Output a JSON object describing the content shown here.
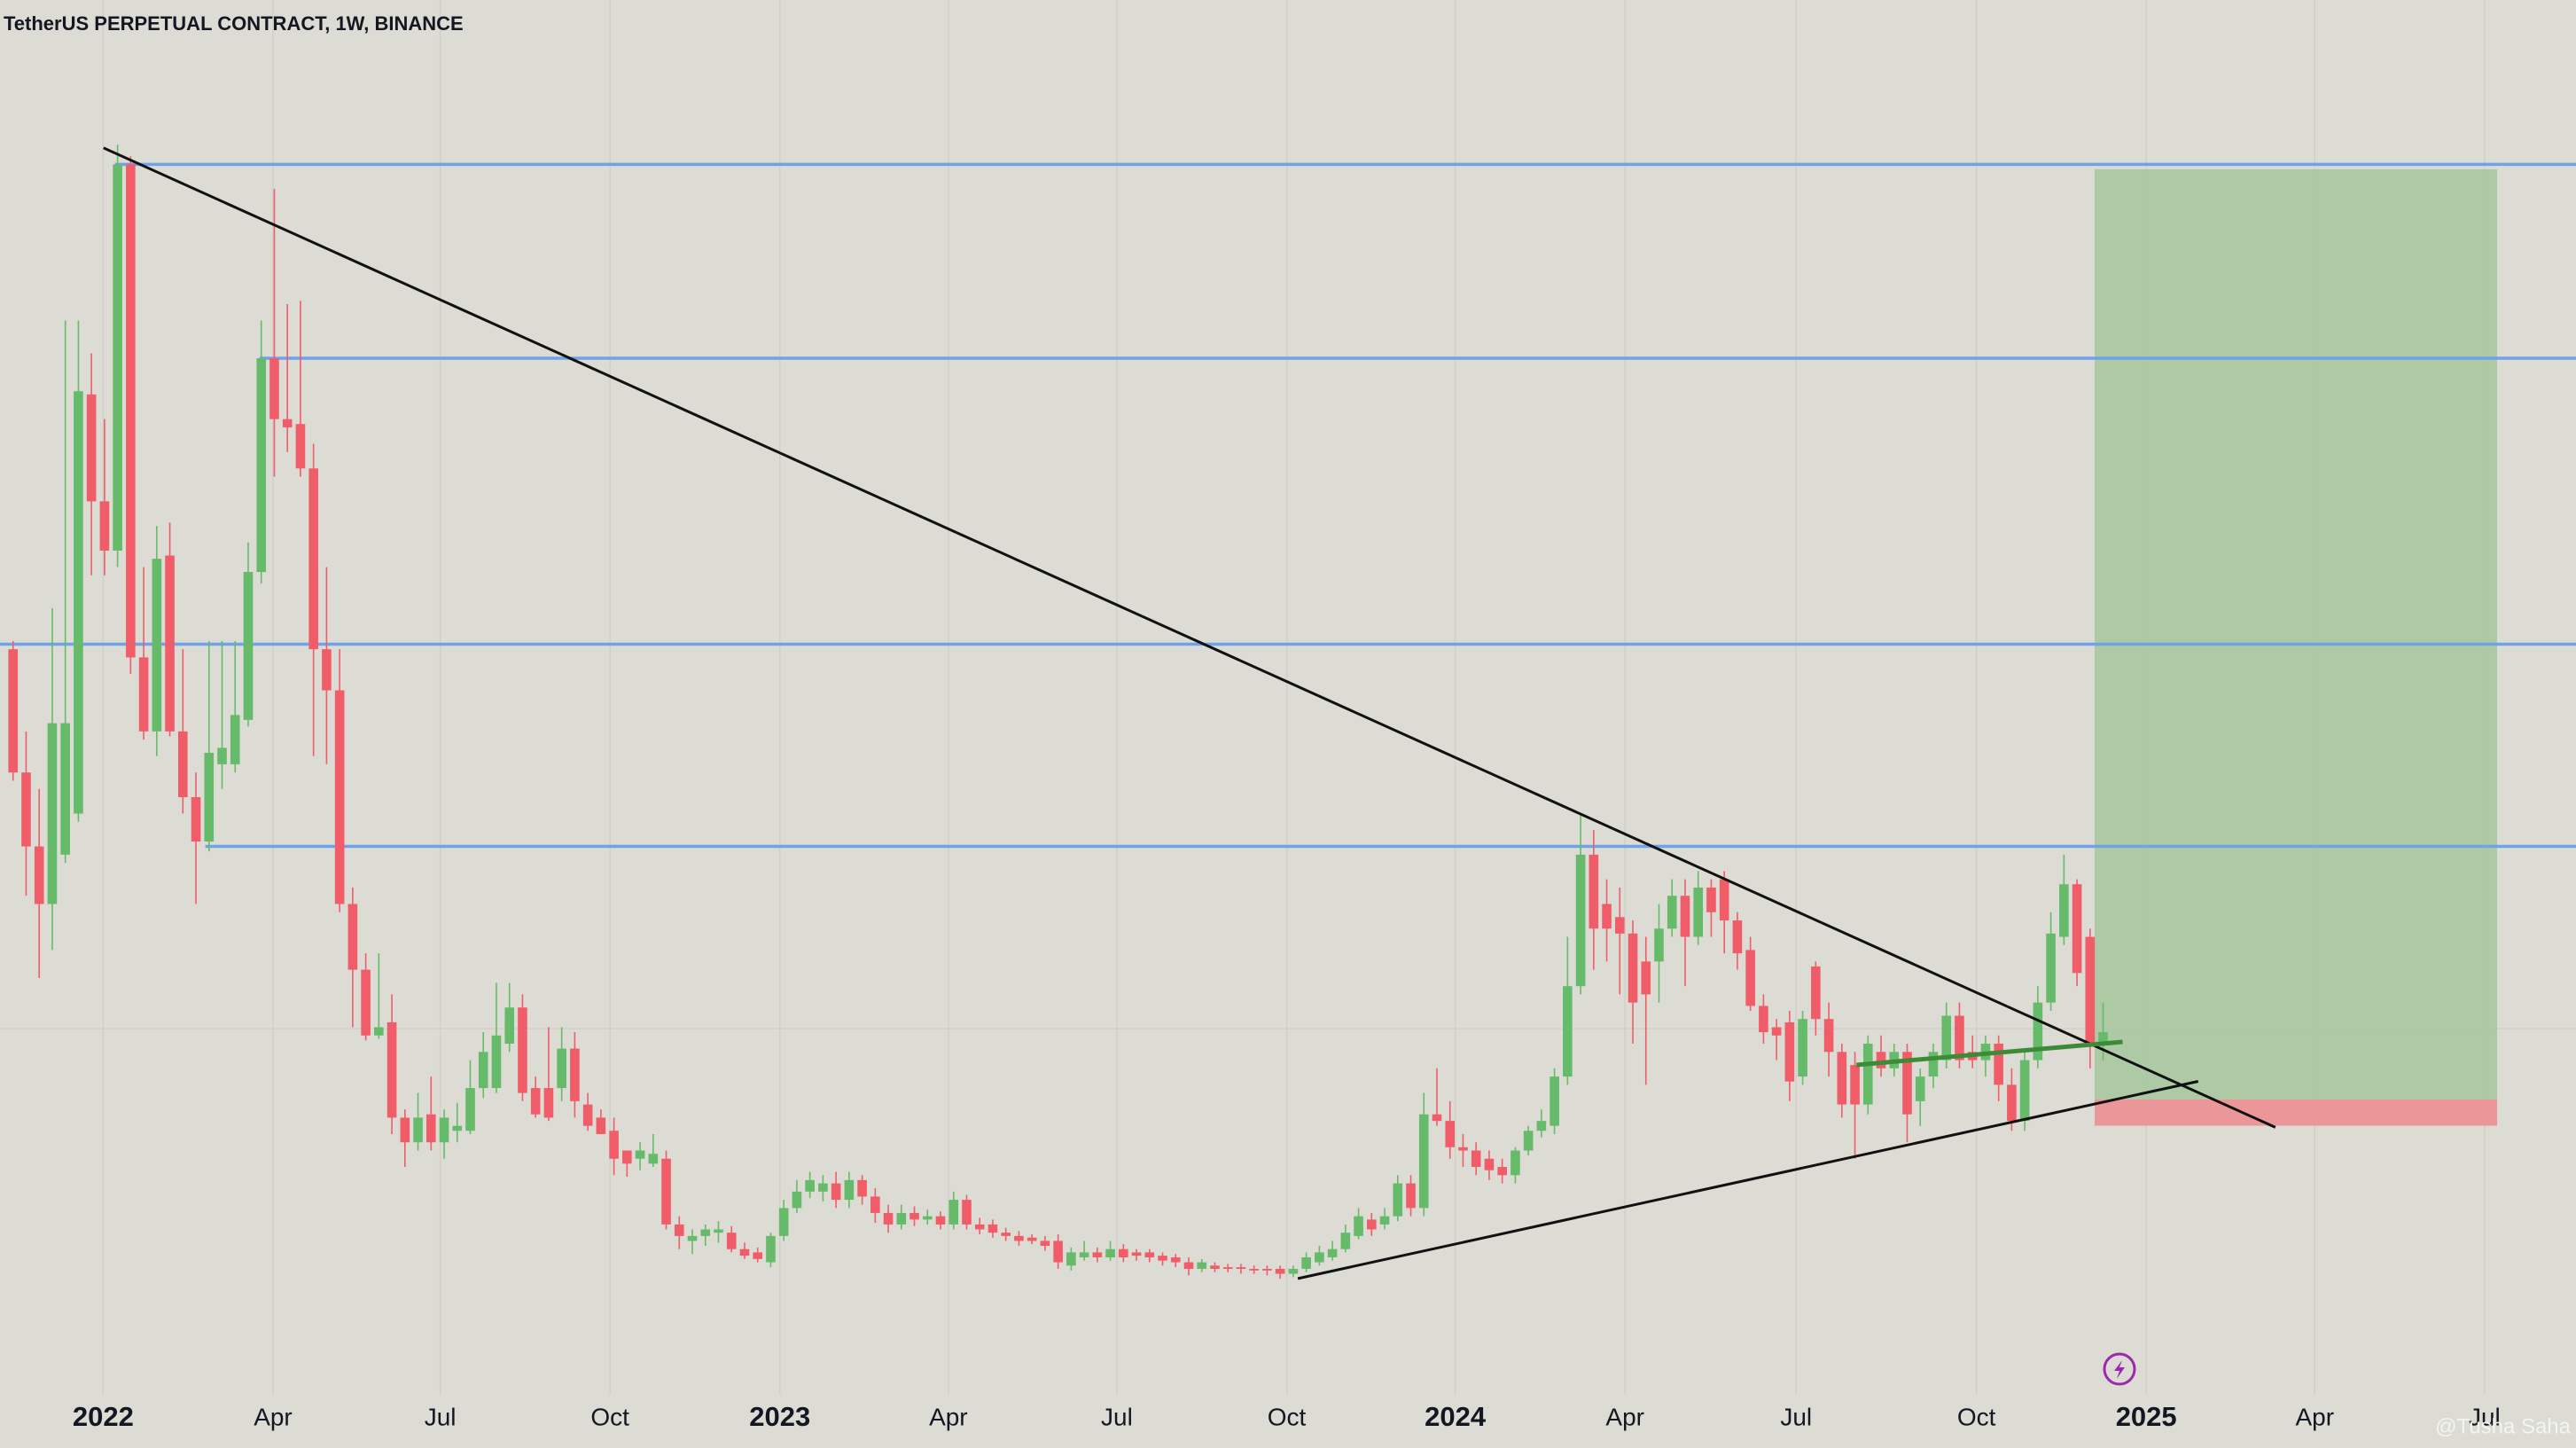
{
  "chart_data": {
    "type": "candlestick",
    "title": "TetherUS PERPETUAL CONTRACT, 1W, BINANCE",
    "watermark": "@Tusha Saha",
    "up_color": "#66bb6a",
    "down_color": "#f05d69",
    "xlim": [
      -1.0,
      196.2
    ],
    "ylim": [
      0,
      881
    ],
    "grid": true,
    "xticks": [
      {
        "value": 6.9,
        "label": "2022"
      },
      {
        "value": 19.9,
        "label": "Apr"
      },
      {
        "value": 32.7,
        "label": "Jul"
      },
      {
        "value": 45.7,
        "label": "Oct"
      },
      {
        "value": 58.7,
        "label": "2023"
      },
      {
        "value": 71.6,
        "label": "Apr"
      },
      {
        "value": 84.5,
        "label": "Jul"
      },
      {
        "value": 97.5,
        "label": "Oct"
      },
      {
        "value": 110.4,
        "label": "2024"
      },
      {
        "value": 123.4,
        "label": "Apr"
      },
      {
        "value": 136.5,
        "label": "Jul"
      },
      {
        "value": 150.3,
        "label": "Oct"
      },
      {
        "value": 163.3,
        "label": "2025"
      },
      {
        "value": 176.2,
        "label": "Apr"
      },
      {
        "value": 189.2,
        "label": "Jul"
      }
    ],
    "open": [
      486,
      411,
      366,
      331,
      361,
      386,
      641,
      576,
      546,
      781,
      481,
      436,
      543,
      436,
      396,
      369,
      416,
      416,
      443,
      533,
      663,
      626,
      623,
      596,
      486,
      461,
      331,
      291,
      251,
      259,
      201,
      186,
      203,
      186,
      193,
      193,
      219,
      219,
      246,
      268,
      219,
      219,
      219,
      243,
      209,
      201,
      193,
      181,
      176,
      173,
      176,
      136,
      126,
      129,
      131,
      131,
      121,
      119,
      113,
      129,
      146,
      156,
      156,
      161,
      151,
      163,
      153,
      143,
      136,
      143,
      139,
      141,
      136,
      151,
      136,
      136,
      131,
      129,
      128,
      126,
      126,
      111,
      116,
      119,
      116,
      121,
      119,
      119,
      117,
      116,
      113,
      109,
      111,
      110,
      110,
      109,
      109,
      109,
      106,
      109,
      113,
      116,
      121,
      129,
      139,
      136,
      141,
      161,
      146,
      203,
      199,
      183,
      181,
      176,
      171,
      166,
      181,
      193,
      196,
      226,
      281,
      361,
      331,
      323,
      313,
      296,
      296,
      316,
      336,
      311,
      341,
      346,
      321,
      303,
      269,
      256,
      259,
      226,
      293,
      261,
      241,
      233,
      209,
      241,
      231,
      241,
      211,
      226,
      236,
      263,
      241,
      236,
      246,
      221,
      199,
      236,
      271,
      311,
      343,
      311,
      246
    ],
    "high": [
      491,
      436,
      401,
      511,
      686,
      686,
      666,
      626,
      793,
      786,
      536,
      561,
      563,
      486,
      411,
      491,
      491,
      491,
      551,
      686,
      766,
      696,
      698,
      611,
      536,
      486,
      341,
      301,
      301,
      276,
      206,
      216,
      226,
      206,
      210,
      236,
      253,
      283,
      283,
      276,
      226,
      256,
      256,
      253,
      216,
      206,
      201,
      181,
      186,
      191,
      181,
      141,
      133,
      136,
      138,
      135,
      125,
      122,
      131,
      151,
      163,
      168,
      166,
      168,
      168,
      166,
      158,
      148,
      148,
      147,
      145,
      144,
      156,
      154,
      140,
      139,
      134,
      132,
      130,
      129,
      130,
      122,
      126,
      122,
      126,
      124,
      121,
      121,
      119,
      118,
      116,
      115,
      113,
      112,
      112,
      111,
      111,
      111,
      111,
      119,
      123,
      126,
      136,
      146,
      143,
      146,
      166,
      166,
      216,
      231,
      211,
      191,
      186,
      181,
      176,
      183,
      196,
      206,
      231,
      311,
      386,
      376,
      346,
      341,
      321,
      311,
      331,
      346,
      346,
      351,
      346,
      351,
      326,
      311,
      276,
      261,
      266,
      266,
      296,
      271,
      246,
      241,
      251,
      251,
      246,
      246,
      231,
      246,
      271,
      271,
      251,
      251,
      251,
      231,
      241,
      281,
      326,
      361,
      346,
      316,
      271
    ],
    "low": [
      406,
      336,
      286,
      303,
      356,
      381,
      531,
      531,
      536,
      471,
      431,
      421,
      433,
      386,
      331,
      363,
      401,
      411,
      439,
      526,
      591,
      606,
      591,
      421,
      416,
      326,
      256,
      248,
      249,
      191,
      171,
      181,
      181,
      176,
      186,
      191,
      213,
      216,
      241,
      211,
      201,
      199,
      211,
      201,
      193,
      191,
      166,
      165,
      169,
      171,
      133,
      121,
      118,
      123,
      125,
      119,
      115,
      113,
      110,
      126,
      143,
      152,
      150,
      146,
      146,
      148,
      137,
      131,
      133,
      135,
      136,
      133,
      133,
      133,
      130,
      128,
      126,
      123,
      124,
      120,
      109,
      108,
      114,
      113,
      114,
      113,
      114,
      113,
      111,
      110,
      105,
      107,
      107,
      107,
      106,
      106,
      105,
      103,
      104,
      107,
      111,
      114,
      119,
      127,
      129,
      133,
      138,
      141,
      141,
      196,
      176,
      171,
      166,
      163,
      161,
      161,
      178,
      189,
      191,
      221,
      276,
      291,
      296,
      276,
      246,
      221,
      271,
      311,
      281,
      306,
      311,
      301,
      291,
      266,
      246,
      236,
      211,
      221,
      251,
      226,
      201,
      176,
      203,
      226,
      226,
      186,
      196,
      219,
      231,
      231,
      231,
      226,
      211,
      193,
      193,
      231,
      266,
      306,
      281,
      231,
      236
    ],
    "close": [
      411,
      366,
      331,
      441,
      441,
      643,
      576,
      546,
      781,
      481,
      436,
      541,
      436,
      396,
      369,
      423,
      426,
      446,
      533,
      663,
      626,
      621,
      596,
      486,
      461,
      331,
      291,
      251,
      256,
      201,
      186,
      201,
      186,
      201,
      196,
      219,
      241,
      251,
      268,
      216,
      203,
      201,
      243,
      211,
      196,
      191,
      176,
      173,
      181,
      179,
      136,
      129,
      129,
      133,
      133,
      121,
      117,
      115,
      129,
      146,
      156,
      163,
      161,
      151,
      163,
      153,
      143,
      136,
      143,
      139,
      141,
      136,
      151,
      136,
      133,
      131,
      129,
      126,
      126,
      123,
      113,
      119,
      119,
      116,
      121,
      116,
      117,
      116,
      114,
      113,
      109,
      113,
      109,
      109,
      109,
      108,
      108,
      106,
      109,
      116,
      119,
      121,
      131,
      141,
      133,
      141,
      161,
      146,
      203,
      199,
      183,
      181,
      171,
      169,
      166,
      181,
      193,
      199,
      226,
      281,
      361,
      316,
      316,
      313,
      271,
      276,
      316,
      336,
      311,
      341,
      326,
      321,
      301,
      269,
      253,
      251,
      223,
      261,
      261,
      241,
      209,
      209,
      246,
      231,
      241,
      203,
      226,
      241,
      263,
      236,
      236,
      246,
      221,
      199,
      236,
      271,
      313,
      343,
      289,
      246,
      253
    ]
  }
}
